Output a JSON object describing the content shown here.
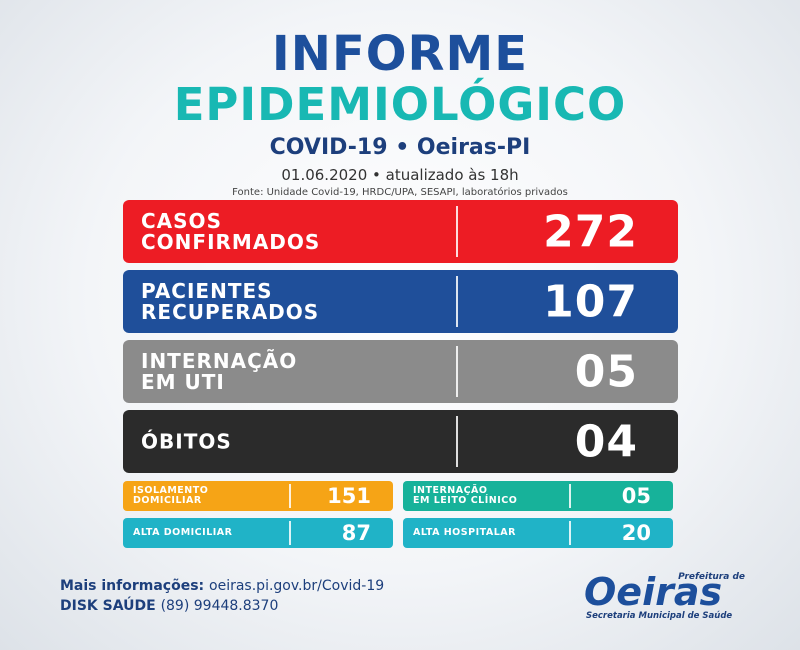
{
  "header": {
    "title_line1": "INFORME",
    "title_line2": "EPIDEMIOLÓGICO",
    "subtitle": "COVID-19 • Oeiras-PI",
    "date_line": "01.06.2020 • atualizado às 18h",
    "source": "Fonte: Unidade Covid-19, HRDC/UPA, SESAPI, laboratórios privados"
  },
  "cards": {
    "confirmed": {
      "label_line1": "CASOS",
      "label_line2": "CONFIRMADOS",
      "value": "272"
    },
    "recovered": {
      "label_line1": "PACIENTES",
      "label_line2": "RECUPERADOS",
      "value": "107"
    },
    "icu": {
      "label_line1": "INTERNAÇÃO",
      "label_line2": "EM UTI",
      "value": "05"
    },
    "deaths": {
      "label": "ÓBITOS",
      "value": "04"
    }
  },
  "mini_cards": {
    "home_isolation": {
      "label_line1": "ISOLAMENTO",
      "label_line2": "DOMICILIAR",
      "value": "151"
    },
    "clinical_bed": {
      "label_line1": "INTERNAÇÃO",
      "label_line2": "EM LEITO CLÍNICO",
      "value": "05"
    },
    "home_discharge": {
      "label": "ALTA DOMICILIAR",
      "value": "87"
    },
    "hospital_discharge": {
      "label": "ALTA HOSPITALAR",
      "value": "20"
    }
  },
  "footer": {
    "info_label": "Mais informações:",
    "info_value": "oeiras.pi.gov.br/Covid-19",
    "phone_label": "DISK SAÚDE",
    "phone_value": "(89) 99448.8370"
  },
  "logo": {
    "top_text": "Prefeitura de",
    "main_text": "Oeiras",
    "bottom_text": "Secretaria Municipal de Saúde"
  },
  "colors": {
    "confirmed": "#ed1c24",
    "recovered": "#1f4f9a",
    "icu": "#8b8b8b",
    "deaths": "#2b2b2b",
    "home_isolation": "#f6a416",
    "clinical_bed": "#17b29a",
    "discharge": "#20b3c7",
    "title_blue": "#1d4f9c",
    "title_teal": "#18b8b3"
  }
}
